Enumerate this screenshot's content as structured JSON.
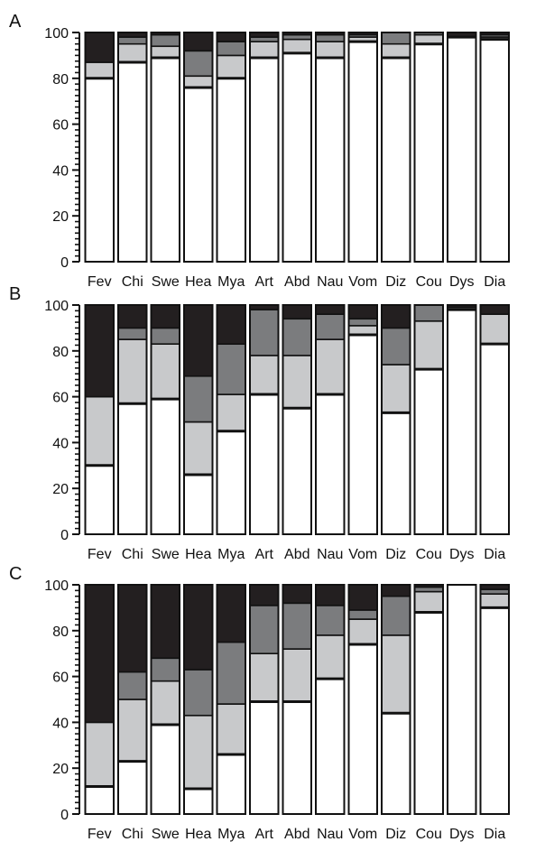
{
  "chart_data": [
    {
      "type": "bar",
      "stacked": true,
      "panel_label": "A",
      "categories": [
        "Fev",
        "Chi",
        "Swe",
        "Hea",
        "Mya",
        "Art",
        "Abd",
        "Nau",
        "Vom",
        "Diz",
        "Cou",
        "Dys",
        "Dia"
      ],
      "ylim": [
        0,
        100
      ],
      "yticks": [
        "0",
        "20",
        "40",
        "60",
        "80",
        "100"
      ],
      "series": [
        {
          "color": "#ffffff",
          "values": [
            80,
            87,
            89,
            76,
            80,
            89,
            91,
            89,
            96,
            89,
            95,
            98,
            97
          ]
        },
        {
          "color": "#c8c9cb",
          "values": [
            7,
            8,
            5,
            5,
            10,
            7,
            6,
            7,
            2,
            6,
            4,
            0,
            1
          ]
        },
        {
          "color": "#7b7c7e",
          "values": [
            0,
            3,
            5,
            11,
            6,
            2,
            2,
            3,
            1,
            5,
            1,
            0,
            1
          ]
        },
        {
          "color": "#231f20",
          "values": [
            13,
            2,
            1,
            8,
            4,
            2,
            1,
            1,
            1,
            0,
            0,
            2,
            1
          ]
        }
      ]
    },
    {
      "type": "bar",
      "stacked": true,
      "panel_label": "B",
      "categories": [
        "Fev",
        "Chi",
        "Swe",
        "Hea",
        "Mya",
        "Art",
        "Abd",
        "Nau",
        "Vom",
        "Diz",
        "Cou",
        "Dys",
        "Dia"
      ],
      "ylim": [
        0,
        100
      ],
      "yticks": [
        "0",
        "20",
        "40",
        "60",
        "80",
        "100"
      ],
      "series": [
        {
          "color": "#ffffff",
          "values": [
            30,
            57,
            59,
            26,
            45,
            61,
            55,
            61,
            87,
            53,
            72,
            98,
            83
          ]
        },
        {
          "color": "#c8c9cb",
          "values": [
            30,
            28,
            24,
            23,
            16,
            17,
            23,
            24,
            4,
            21,
            21,
            1,
            13
          ]
        },
        {
          "color": "#7b7c7e",
          "values": [
            0,
            5,
            7,
            20,
            22,
            20,
            16,
            11,
            3,
            16,
            7,
            0,
            0
          ]
        },
        {
          "color": "#231f20",
          "values": [
            40,
            10,
            10,
            31,
            17,
            2,
            6,
            4,
            6,
            10,
            0,
            1,
            4
          ]
        }
      ]
    },
    {
      "type": "bar",
      "stacked": true,
      "panel_label": "C",
      "categories": [
        "Fev",
        "Chi",
        "Swe",
        "Hea",
        "Mya",
        "Art",
        "Abd",
        "Nau",
        "Vom",
        "Diz",
        "Cou",
        "Dys",
        "Dia"
      ],
      "ylim": [
        0,
        100
      ],
      "yticks": [
        "0",
        "20",
        "40",
        "60",
        "80",
        "100"
      ],
      "series": [
        {
          "color": "#ffffff",
          "values": [
            12,
            23,
            39,
            11,
            26,
            49,
            49,
            59,
            74,
            44,
            88,
            100,
            90
          ]
        },
        {
          "color": "#c8c9cb",
          "values": [
            28,
            27,
            19,
            32,
            22,
            21,
            23,
            19,
            11,
            34,
            9,
            0,
            6
          ]
        },
        {
          "color": "#7b7c7e",
          "values": [
            0,
            12,
            10,
            20,
            27,
            21,
            20,
            13,
            4,
            17,
            2,
            0,
            2
          ]
        },
        {
          "color": "#231f20",
          "values": [
            60,
            38,
            32,
            37,
            25,
            9,
            8,
            9,
            11,
            5,
            1,
            0,
            2
          ]
        }
      ]
    }
  ]
}
